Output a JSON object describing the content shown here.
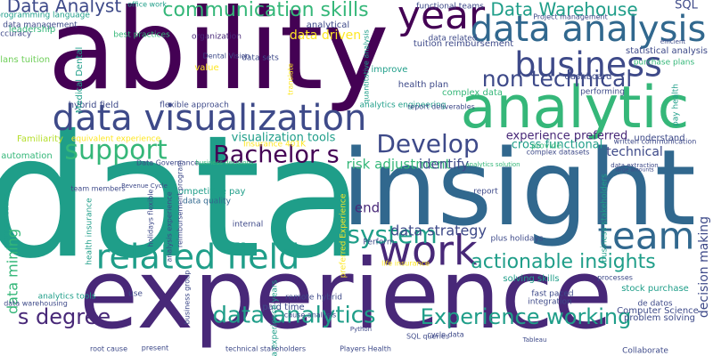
{
  "palette": {
    "dark_purple": "#440154",
    "purple": "#482878",
    "indigo": "#3e4a89",
    "blue": "#31688e",
    "teal_blue": "#26828e",
    "teal": "#1f9e89",
    "green": "#35b779",
    "light_green": "#6ece58",
    "yellow_green": "#b5de2b",
    "yellow": "#fde725"
  },
  "words": [
    "data",
    "experience",
    "insight",
    "ability",
    "analytic",
    "data visualization",
    "year",
    "data analysis",
    "business",
    "team",
    "work",
    "related field",
    "Data Warehouse",
    "communication skills",
    "Data Analyst",
    "non technical",
    "support",
    "Bachelor s",
    "Develop",
    "system",
    "actionable insights",
    "data analytics",
    "Experience working",
    "s degree",
    "risk adjustment",
    "data strategy",
    "identify",
    "data mining",
    "data driven",
    "visualization tools",
    "experience preferred",
    "cross functional",
    "technical",
    "SQL",
    "end",
    "decision making",
    "programming language",
    "office work",
    "functional teams",
    "data management",
    "best practices",
    "organization",
    "leadership",
    "plans tuition",
    "tuition reimbursement",
    "statistical analysis",
    "health plan",
    "complex data",
    "hybrid field",
    "flexible approach",
    "analytics engineering",
    "Familiarity",
    "equivalent experience",
    "Insurance 401K",
    "automation",
    "pay health",
    "written communication",
    "competitive pay",
    "data quality",
    "Computer Science",
    "stock purchase",
    "problem solving",
    "de datos",
    "processes",
    "integration",
    "fast paced",
    "solving skills",
    "plus holidays",
    "remote hybrid",
    "paid time",
    "cause analysis",
    "Collaborate",
    "analytics tools",
    "data warehousing",
    "work schedules",
    "health insurance",
    "analysis experience",
    "business group",
    "preferred Experience",
    "data experience years",
    "use",
    "present",
    "root cause",
    "Perform",
    "report",
    "internal",
    "understand",
    "provide",
    "performing",
    "improve",
    "data related",
    "analytical",
    "data sets",
    "Medical Dental",
    "Dental Vision",
    "value",
    "translate",
    "quantitative analysis",
    "business stakeholders",
    "Project management",
    "dashboard",
    "purchase plans",
    "accuracy",
    "SQL queries",
    "cycle data",
    "technical stakeholders",
    "Players Health",
    "Data Governance",
    "team members",
    "reimbursement program",
    "holidays flexible",
    "report deliverables",
    "complex datasets",
    "business decisions",
    "life insurance",
    "Revenue Cycle",
    "analytics solution",
    "data extraction",
    "large amounts",
    "efficient",
    "Python",
    "Tableau"
  ]
}
